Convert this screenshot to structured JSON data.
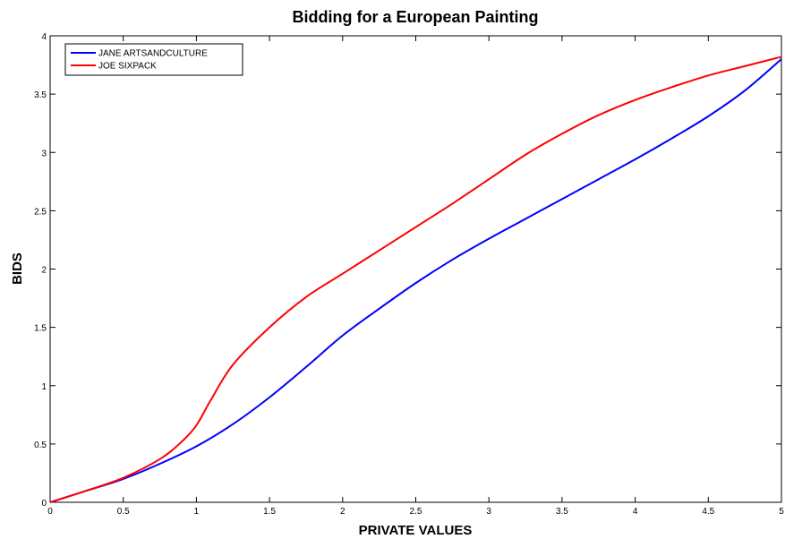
{
  "chart_data": {
    "type": "line",
    "title": "Bidding for a European Painting",
    "xlabel": "PRIVATE VALUES",
    "ylabel": "BIDS",
    "xlim": [
      0,
      5
    ],
    "ylim": [
      0,
      4
    ],
    "xticks": [
      "0",
      "0.5",
      "1",
      "1.5",
      "2",
      "2.5",
      "3",
      "3.5",
      "4",
      "4.5",
      "5"
    ],
    "yticks": [
      "0",
      "0.5",
      "1",
      "1.5",
      "2",
      "2.5",
      "3",
      "3.5",
      "4"
    ],
    "grid": false,
    "legend_position": "top-left",
    "series": [
      {
        "name": "JANE ARTSANDCULTURE",
        "color": "#0000ff",
        "x": [
          0,
          0.25,
          0.5,
          0.75,
          1.0,
          1.25,
          1.5,
          1.75,
          2.0,
          2.25,
          2.5,
          2.75,
          3.0,
          3.25,
          3.5,
          3.75,
          4.0,
          4.25,
          4.5,
          4.75,
          5.0
        ],
        "y": [
          0,
          0.1,
          0.2,
          0.33,
          0.48,
          0.67,
          0.9,
          1.16,
          1.43,
          1.66,
          1.88,
          2.08,
          2.26,
          2.43,
          2.6,
          2.77,
          2.94,
          3.12,
          3.31,
          3.53,
          3.8
        ]
      },
      {
        "name": "JOE SIXPACK",
        "color": "#ff0000",
        "x": [
          0,
          0.25,
          0.5,
          0.75,
          0.9,
          1.0,
          1.1,
          1.25,
          1.5,
          1.75,
          2.0,
          2.25,
          2.5,
          2.75,
          3.0,
          3.25,
          3.5,
          3.75,
          4.0,
          4.25,
          4.5,
          4.75,
          5.0
        ],
        "y": [
          0,
          0.1,
          0.21,
          0.37,
          0.52,
          0.66,
          0.88,
          1.18,
          1.5,
          1.76,
          1.96,
          2.16,
          2.36,
          2.56,
          2.77,
          2.98,
          3.16,
          3.32,
          3.45,
          3.56,
          3.66,
          3.74,
          3.82
        ]
      }
    ]
  }
}
